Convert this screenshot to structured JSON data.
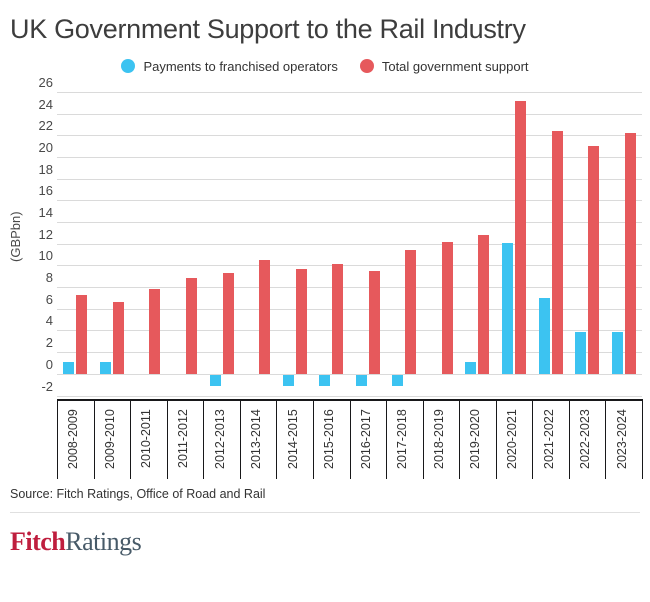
{
  "title": "UK Government Support to the Rail Industry",
  "y_axis_title": "(GBPbn)",
  "legend": [
    {
      "name": "payments-legend",
      "label": "Payments to franchised operators",
      "color": "#3cc3f1"
    },
    {
      "name": "total-legend",
      "label": "Total government support",
      "color": "#e6595c"
    }
  ],
  "chart_data": {
    "type": "bar",
    "categories": [
      "2008-2009",
      "2009-2010",
      "2010-2011",
      "2011-2012",
      "2012-2013",
      "2013-2014",
      "2014-2015",
      "2015-2016",
      "2016-2017",
      "2017-2018",
      "2018-2019",
      "2019-2020",
      "2020-2021",
      "2021-2022",
      "2022-2023",
      "2023-2024"
    ],
    "series": [
      {
        "name": "Payments to franchised operators",
        "color": "#3cc3f1",
        "values": [
          1.1,
          1.1,
          0,
          0,
          -1.0,
          0,
          -1.0,
          -1.0,
          -1.0,
          -1.0,
          0,
          1.1,
          12.1,
          7.0,
          3.9,
          3.9
        ]
      },
      {
        "name": "Total government support",
        "color": "#e6595c",
        "values": [
          7.3,
          6.6,
          7.8,
          8.8,
          9.3,
          10.5,
          9.7,
          10.1,
          9.5,
          11.4,
          12.2,
          12.8,
          25.2,
          22.4,
          21.0,
          22.2
        ]
      }
    ],
    "title": "UK Government Support to the Rail Industry",
    "xlabel": "",
    "ylabel": "(GBPbn)",
    "ylim": [
      -2,
      26
    ],
    "ytick_step": 2,
    "grid": true,
    "legend_position": "top"
  },
  "colors": {
    "payments": "#3cc3f1",
    "total": "#e6595c",
    "gridline": "#dadada",
    "axis": "#18181a",
    "text": "#333333"
  },
  "source": "Source: Fitch Ratings, Office of Road and Rail",
  "logo": {
    "part1": "Fitch",
    "part2": "Ratings",
    "color1": "#bf1e3e",
    "color2": "#475a68"
  }
}
